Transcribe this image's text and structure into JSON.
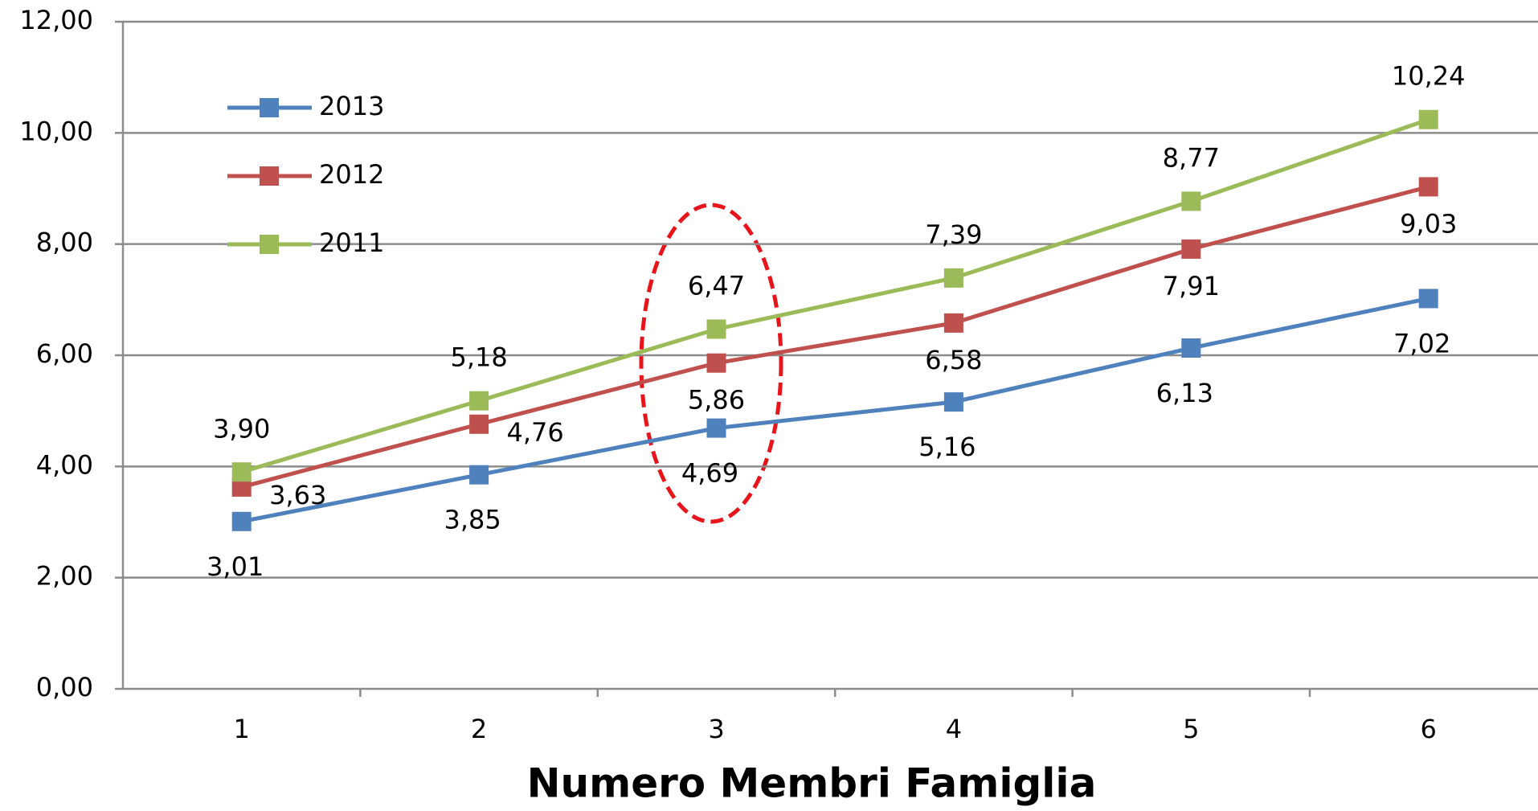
{
  "chart_data": {
    "type": "line",
    "x_label": "Numero Membri Famiglia",
    "categories": [
      "1",
      "2",
      "3",
      "4",
      "5",
      "6"
    ],
    "series": [
      {
        "name": "2013",
        "color": "#4f81bd",
        "values": [
          3.01,
          3.85,
          4.69,
          5.16,
          6.13,
          7.02
        ],
        "value_labels": [
          "3,01",
          "3,85",
          "4,69",
          "5,16",
          "6,13",
          "7,02"
        ]
      },
      {
        "name": "2012",
        "color": "#c0504d",
        "values": [
          3.63,
          4.76,
          5.86,
          6.58,
          7.91,
          9.03
        ],
        "value_labels": [
          "3,63",
          "4,76",
          "5,86",
          "6,58",
          "7,91",
          "9,03"
        ]
      },
      {
        "name": "2011",
        "color": "#9bbb59",
        "values": [
          3.9,
          5.18,
          6.47,
          7.39,
          8.77,
          10.24
        ],
        "value_labels": [
          "3,90",
          "5,18",
          "6,47",
          "7,39",
          "8,77",
          "10,24"
        ]
      }
    ],
    "ylim": [
      0,
      12
    ],
    "yticks": [
      {
        "value": 0,
        "label": "0,00"
      },
      {
        "value": 2,
        "label": "2,00"
      },
      {
        "value": 4,
        "label": "4,00"
      },
      {
        "value": 6,
        "label": "6,00"
      },
      {
        "value": 8,
        "label": "8,00"
      },
      {
        "value": 10,
        "label": "10,00"
      },
      {
        "value": 12,
        "label": "12,00"
      }
    ],
    "grid": true,
    "legend": "upper left"
  }
}
